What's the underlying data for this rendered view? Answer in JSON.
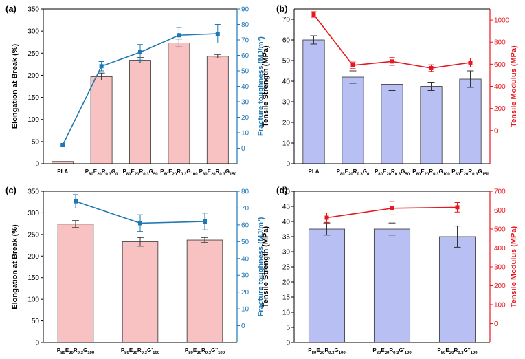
{
  "chart_data": [
    {
      "id": "a",
      "panel_label": "(a)",
      "type": "bar+line",
      "categories": [
        {
          "name": "PLA",
          "base": "PLA",
          "parts": []
        },
        {
          "name": "P80E20R0.3G0",
          "base": "P",
          "parts": [
            [
              "80",
              "sub"
            ],
            [
              "E",
              ""
            ],
            [
              "20",
              "sub"
            ],
            [
              "R",
              ""
            ],
            [
              "0.3",
              "sub"
            ],
            [
              "G",
              ""
            ],
            [
              "0",
              "sub"
            ]
          ]
        },
        {
          "name": "P80E20R0.3G50",
          "base": "P",
          "parts": [
            [
              "80",
              "sub"
            ],
            [
              "E",
              ""
            ],
            [
              "20",
              "sub"
            ],
            [
              "R",
              ""
            ],
            [
              "0.3",
              "sub"
            ],
            [
              "G",
              ""
            ],
            [
              "50",
              "sub"
            ]
          ]
        },
        {
          "name": "P80E20R0.3G100",
          "base": "P",
          "parts": [
            [
              "80",
              "sub"
            ],
            [
              "E",
              ""
            ],
            [
              "20",
              "sub"
            ],
            [
              "R",
              ""
            ],
            [
              "0.3",
              "sub"
            ],
            [
              "G",
              ""
            ],
            [
              "100",
              "sub"
            ]
          ]
        },
        {
          "name": "P80E20R0.3G150",
          "base": "P",
          "parts": [
            [
              "80",
              "sub"
            ],
            [
              "E",
              ""
            ],
            [
              "20",
              "sub"
            ],
            [
              "R",
              ""
            ],
            [
              "0.3",
              "sub"
            ],
            [
              "G",
              ""
            ],
            [
              "150",
              "sub"
            ]
          ]
        }
      ],
      "bars": {
        "name": "Elongation at Break",
        "values": [
          5,
          197,
          234,
          273,
          243
        ],
        "errors": [
          0,
          8,
          6,
          9,
          4
        ],
        "color": "#f9c2c2"
      },
      "line": {
        "name": "Fracture toughness",
        "values": [
          2,
          53,
          62,
          73,
          74
        ],
        "errors": [
          0,
          3,
          5,
          5,
          6
        ],
        "color": "#1f77b4"
      },
      "ylabel_left": "Elongation at Break (%)",
      "ylabel_right": "Fracture toughness (MJ/m³)",
      "ylim_left": [
        0,
        350
      ],
      "yticks_left": [
        0,
        50,
        100,
        150,
        200,
        250,
        300,
        350
      ],
      "ylim_right": [
        -10,
        90
      ],
      "yticks_right": [
        0,
        10,
        20,
        30,
        40,
        50,
        60,
        70,
        80,
        90
      ],
      "left_color": "#000000",
      "right_color": "#1f77b4"
    },
    {
      "id": "b",
      "panel_label": "(b)",
      "type": "bar+line",
      "categories": [
        {
          "name": "PLA",
          "base": "PLA",
          "parts": []
        },
        {
          "name": "P80E20R0.3G0",
          "base": "P",
          "parts": [
            [
              "80",
              "sub"
            ],
            [
              "E",
              ""
            ],
            [
              "20",
              "sub"
            ],
            [
              "R",
              ""
            ],
            [
              "0.3",
              "sub"
            ],
            [
              "G",
              ""
            ],
            [
              "0",
              "sub"
            ]
          ]
        },
        {
          "name": "P80E20R0.3G50",
          "base": "P",
          "parts": [
            [
              "80",
              "sub"
            ],
            [
              "E",
              ""
            ],
            [
              "20",
              "sub"
            ],
            [
              "R",
              ""
            ],
            [
              "0.3",
              "sub"
            ],
            [
              "G",
              ""
            ],
            [
              "50",
              "sub"
            ]
          ]
        },
        {
          "name": "P80E20R0.3G100",
          "base": "P",
          "parts": [
            [
              "80",
              "sub"
            ],
            [
              "E",
              ""
            ],
            [
              "20",
              "sub"
            ],
            [
              "R",
              ""
            ],
            [
              "0.3",
              "sub"
            ],
            [
              "G",
              ""
            ],
            [
              "100",
              "sub"
            ]
          ]
        },
        {
          "name": "P80E20R0.3G150",
          "base": "P",
          "parts": [
            [
              "80",
              "sub"
            ],
            [
              "E",
              ""
            ],
            [
              "20",
              "sub"
            ],
            [
              "R",
              ""
            ],
            [
              "0.3",
              "sub"
            ],
            [
              "G",
              ""
            ],
            [
              "150",
              "sub"
            ]
          ]
        }
      ],
      "bars": {
        "name": "Tensile Strength",
        "values": [
          60,
          42,
          38.5,
          37.5,
          41
        ],
        "errors": [
          2,
          3,
          3,
          2,
          4
        ],
        "color": "#b8bff2"
      },
      "line": {
        "name": "Tensile Modulus",
        "values": [
          1050,
          590,
          625,
          565,
          615
        ],
        "errors": [
          25,
          30,
          35,
          30,
          40
        ],
        "color": "#e8171f"
      },
      "ylabel_left": "Tensile Strength (MPa)",
      "ylabel_right": "Tensile Modulus (MPa)",
      "ylim_left": [
        0,
        75
      ],
      "yticks_left": [
        0,
        10,
        20,
        30,
        40,
        50,
        60,
        70
      ],
      "ylim_right": [
        -300,
        1100
      ],
      "yticks_right": [
        0,
        200,
        400,
        600,
        800,
        1000
      ],
      "left_color": "#000000",
      "right_color": "#e8171f"
    },
    {
      "id": "c",
      "panel_label": "(c)",
      "type": "bar+line",
      "categories": [
        {
          "name": "P80E20R0.3G100",
          "base": "P",
          "parts": [
            [
              "80",
              "sub"
            ],
            [
              "E",
              ""
            ],
            [
              "20",
              "sub"
            ],
            [
              "R",
              ""
            ],
            [
              "0.3",
              "sub"
            ],
            [
              "G",
              ""
            ],
            [
              "100",
              "sub"
            ]
          ]
        },
        {
          "name": "P80E20R0.3G'100",
          "base": "P",
          "parts": [
            [
              "80",
              "sub"
            ],
            [
              "E",
              ""
            ],
            [
              "20",
              "sub"
            ],
            [
              "R",
              ""
            ],
            [
              "0.3",
              "sub"
            ],
            [
              "G'",
              ""
            ],
            [
              "100",
              "sub"
            ]
          ]
        },
        {
          "name": "P80E20R0.3G''100",
          "base": "P",
          "parts": [
            [
              "80",
              "sub"
            ],
            [
              "E",
              ""
            ],
            [
              "20",
              "sub"
            ],
            [
              "R",
              ""
            ],
            [
              "0.3",
              "sub"
            ],
            [
              "G''",
              ""
            ],
            [
              "100",
              "sub"
            ]
          ]
        }
      ],
      "bars": {
        "name": "Elongation at Break",
        "values": [
          274,
          233,
          237
        ],
        "errors": [
          8,
          10,
          6
        ],
        "color": "#f9c2c2"
      },
      "line": {
        "name": "Fracture toughness",
        "values": [
          74,
          61,
          62
        ],
        "errors": [
          4,
          5,
          5
        ],
        "color": "#1f77b4"
      },
      "ylabel_left": "Elongation at Break (%)",
      "ylabel_right": "Fracture toughness (MJ/m³)",
      "ylim_left": [
        0,
        350
      ],
      "yticks_left": [
        0,
        50,
        100,
        150,
        200,
        250,
        300,
        350
      ],
      "ylim_right": [
        -10,
        80
      ],
      "yticks_right": [
        0,
        10,
        20,
        30,
        40,
        50,
        60,
        70,
        80
      ],
      "left_color": "#000000",
      "right_color": "#1f77b4"
    },
    {
      "id": "d",
      "panel_label": "(d)",
      "type": "bar+line",
      "categories": [
        {
          "name": "P80E20R0.3G100",
          "base": "P",
          "parts": [
            [
              "80",
              "sub"
            ],
            [
              "E",
              ""
            ],
            [
              "20",
              "sub"
            ],
            [
              "R",
              ""
            ],
            [
              "0.3",
              "sub"
            ],
            [
              "G",
              ""
            ],
            [
              "100",
              "sub"
            ]
          ]
        },
        {
          "name": "P80E20R0.3G'100",
          "base": "P",
          "parts": [
            [
              "80",
              "sub"
            ],
            [
              "E",
              ""
            ],
            [
              "20",
              "sub"
            ],
            [
              "R",
              ""
            ],
            [
              "0.3",
              "sub"
            ],
            [
              "G'",
              ""
            ],
            [
              "100",
              "sub"
            ]
          ]
        },
        {
          "name": "P80E20R0.3G''100",
          "base": "P",
          "parts": [
            [
              "80",
              "sub"
            ],
            [
              "E",
              ""
            ],
            [
              "20",
              "sub"
            ],
            [
              "R",
              ""
            ],
            [
              "0.3",
              "sub"
            ],
            [
              "G''",
              ""
            ],
            [
              "100",
              "sub"
            ]
          ]
        }
      ],
      "bars": {
        "name": "Tensile Strength",
        "values": [
          37.5,
          37.5,
          35
        ],
        "errors": [
          2,
          2,
          3.5
        ],
        "color": "#b8bff2"
      },
      "line": {
        "name": "Tensile Modulus",
        "values": [
          560,
          610,
          615
        ],
        "errors": [
          25,
          35,
          25
        ],
        "color": "#e8171f"
      },
      "ylabel_left": "Tensile Strength (MPa)",
      "ylabel_right": "Tensile Modulus (MPa)",
      "ylim_left": [
        0,
        50
      ],
      "yticks_left": [
        0,
        5,
        10,
        15,
        20,
        25,
        30,
        35,
        40,
        45,
        50
      ],
      "ylim_right": [
        -100,
        700
      ],
      "yticks_right": [
        0,
        100,
        200,
        300,
        400,
        500,
        600,
        700
      ],
      "left_color": "#000000",
      "right_color": "#e8171f"
    }
  ]
}
